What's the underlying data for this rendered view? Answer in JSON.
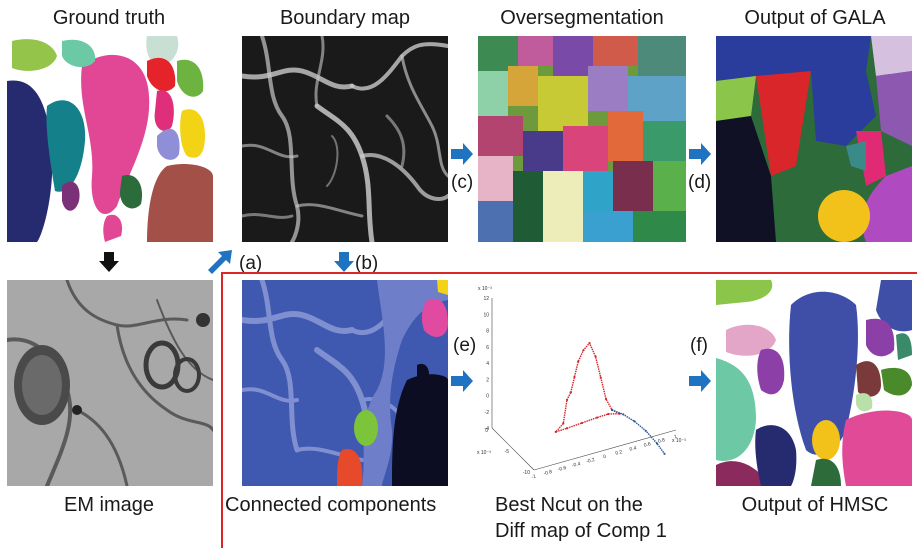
{
  "panels": {
    "ground_truth": "Ground truth",
    "boundary_map": "Boundary map",
    "overseg": "Oversegmentation",
    "gala": "Output of GALA",
    "em_image": "EM image",
    "connected": "Connected components",
    "ncut_line1": "Best Ncut on the",
    "ncut_line2": "Diff map of Comp 1",
    "hmsc": "Output of HMSC"
  },
  "steps": {
    "a": "(a)",
    "b": "(b)",
    "c": "(c)",
    "d": "(d)",
    "e": "(e)",
    "f": "(f)"
  },
  "plot": {
    "y_ticks": [
      "12",
      "10",
      "8",
      "6",
      "4",
      "2",
      "0",
      "-2",
      "-4"
    ],
    "y_exp": "x 10⁻³",
    "x_ticks": [
      "-1",
      "-0.8",
      "-0.6",
      "-0.4",
      "-0.2",
      "0",
      "0.2",
      "0.4",
      "0.6",
      "0.8",
      "1"
    ],
    "x_exp": "x 10⁻³",
    "z_ticks": [
      "0",
      "-5",
      "-10"
    ],
    "z_exp": "x 10⁻³",
    "series": [
      {
        "points": [
          [
            -0.35,
            1.5
          ],
          [
            -0.3,
            3.5
          ],
          [
            -0.25,
            5.5
          ],
          [
            -0.18,
            7
          ],
          [
            -0.1,
            8
          ],
          [
            -0.02,
            6.5
          ],
          [
            0.05,
            4
          ],
          [
            0.12,
            1.5
          ],
          [
            0.2,
            0.3
          ],
          [
            0.3,
            0.0
          ],
          [
            0.15,
            -0.3
          ],
          [
            0.0,
            -1.0
          ],
          [
            -0.2,
            -2.0
          ],
          [
            -0.4,
            -3.0
          ],
          [
            -0.55,
            -3.7
          ],
          [
            -0.45,
            -2.5
          ],
          [
            -0.4,
            0.5
          ],
          [
            -0.35,
            1.5
          ]
        ],
        "color": "#d8262b"
      },
      {
        "points": [
          [
            0.2,
            0.3
          ],
          [
            0.35,
            0.0
          ],
          [
            0.5,
            -0.6
          ],
          [
            0.65,
            -1.5
          ],
          [
            0.8,
            -2.8
          ],
          [
            0.9,
            -3.9
          ]
        ],
        "color": "#2b5aa0"
      }
    ]
  },
  "colors": {
    "arrow": "#1f73c1",
    "black_arrow": "#111111",
    "divider": "#d8262b"
  }
}
